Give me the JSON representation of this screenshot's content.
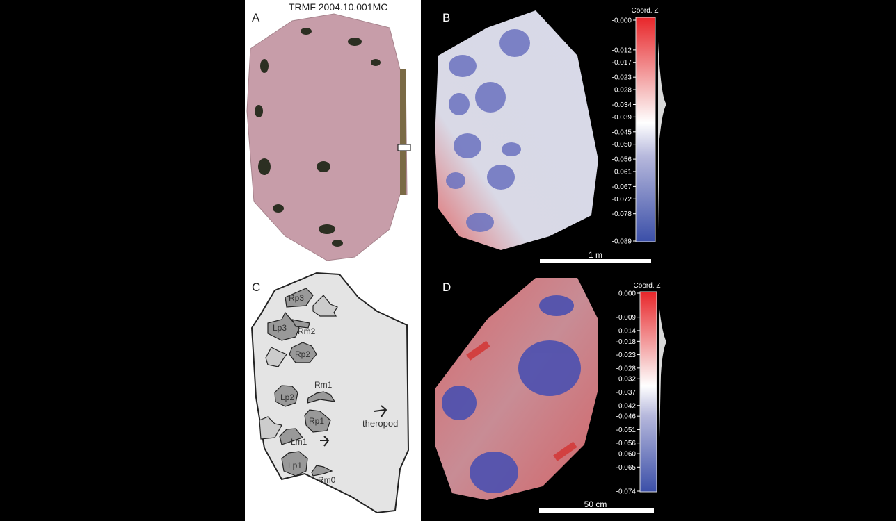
{
  "figure": {
    "title": "TRMF 2004.10.001MC",
    "panels": {
      "a": "A",
      "b": "B",
      "c": "C",
      "d": "D"
    }
  },
  "panel_b": {
    "colorbar": {
      "title": "Coord. Z",
      "ticks": [
        "-0.000",
        "-0.012",
        "-0.017",
        "-0.023",
        "-0.028",
        "-0.034",
        "-0.039",
        "-0.045",
        "-0.050",
        "-0.056",
        "-0.061",
        "-0.067",
        "-0.072",
        "-0.078",
        "-0.089"
      ],
      "range": [
        0,
        -0.089
      ],
      "colors": {
        "top": "#e8262a",
        "middle": "#ffffff",
        "bottom": "#3b4fa8"
      }
    },
    "scale_bar": "1 m"
  },
  "panel_d": {
    "colorbar": {
      "title": "Coord. Z",
      "ticks": [
        "0.000",
        "-0.009",
        "-0.014",
        "-0.018",
        "-0.023",
        "-0.028",
        "-0.032",
        "-0.037",
        "-0.042",
        "-0.046",
        "-0.051",
        "-0.056",
        "-0.060",
        "-0.065",
        "-0.074"
      ],
      "range": [
        0,
        -0.074
      ],
      "colors": {
        "top": "#e8262a",
        "middle": "#ffffff",
        "bottom": "#3b4fa8"
      }
    },
    "scale_bar": "50 cm"
  },
  "panel_c": {
    "footprints": [
      "Rp3",
      "Lp3",
      "Rm2",
      "Rp2",
      "Rm1",
      "Lp2",
      "Rp1",
      "Lm1",
      "Lp1",
      "Rm0"
    ],
    "trackmaker_label": "theropod"
  }
}
